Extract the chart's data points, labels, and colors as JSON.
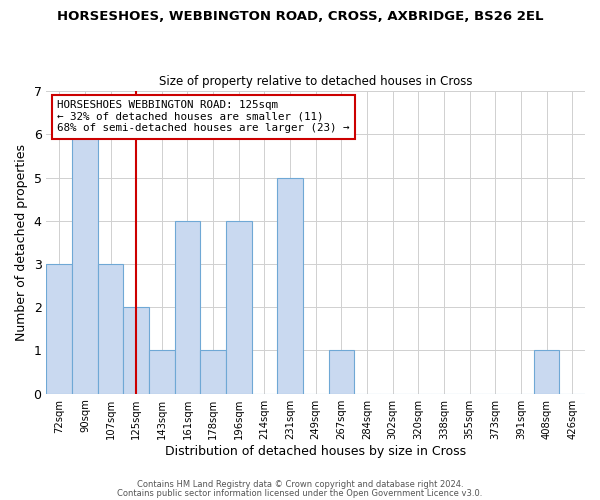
{
  "title": "HORSESHOES, WEBBINGTON ROAD, CROSS, AXBRIDGE, BS26 2EL",
  "subtitle": "Size of property relative to detached houses in Cross",
  "xlabel": "Distribution of detached houses by size in Cross",
  "ylabel": "Number of detached properties",
  "footnote1": "Contains HM Land Registry data © Crown copyright and database right 2024.",
  "footnote2": "Contains public sector information licensed under the Open Government Licence v3.0.",
  "bin_labels": [
    "72sqm",
    "90sqm",
    "107sqm",
    "125sqm",
    "143sqm",
    "161sqm",
    "178sqm",
    "196sqm",
    "214sqm",
    "231sqm",
    "249sqm",
    "267sqm",
    "284sqm",
    "302sqm",
    "320sqm",
    "338sqm",
    "355sqm",
    "373sqm",
    "391sqm",
    "408sqm",
    "426sqm"
  ],
  "bar_heights": [
    3,
    6,
    3,
    2,
    1,
    4,
    1,
    4,
    0,
    5,
    0,
    1,
    0,
    0,
    0,
    0,
    0,
    0,
    0,
    1,
    0
  ],
  "bar_color": "#c9d9f0",
  "bar_edge_color": "#6fa8d5",
  "vline_x": 3,
  "vline_color": "#cc0000",
  "annotation_title": "HORSESHOES WEBBINGTON ROAD: 125sqm",
  "annotation_line1": "← 32% of detached houses are smaller (11)",
  "annotation_line2": "68% of semi-detached houses are larger (23) →",
  "annotation_box_edge": "#cc0000",
  "ylim": [
    0,
    7
  ],
  "yticks": [
    0,
    1,
    2,
    3,
    4,
    5,
    6,
    7
  ],
  "background_color": "#ffffff",
  "grid_color": "#d0d0d0"
}
